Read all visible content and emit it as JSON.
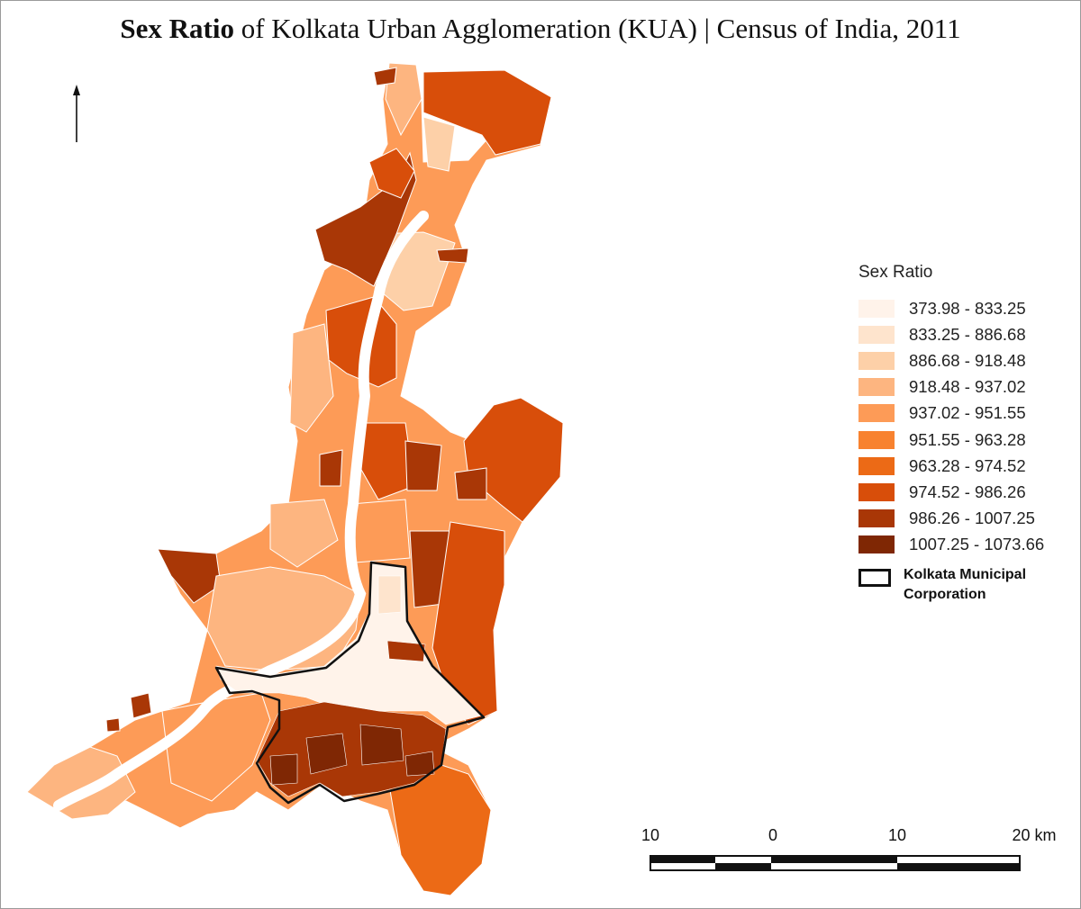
{
  "title": {
    "bold": "Sex Ratio",
    "rest": " of Kolkata Urban Agglomeration (KUA) | Census of India, 2011"
  },
  "legend": {
    "title": "Sex Ratio",
    "classes": [
      {
        "label": "373.98 - 833.25",
        "color": "#fff3ea"
      },
      {
        "label": "833.25 - 886.68",
        "color": "#fee4cd"
      },
      {
        "label": "886.68 - 918.48",
        "color": "#fdd0a8"
      },
      {
        "label": "918.48 - 937.02",
        "color": "#fdb580"
      },
      {
        "label": "937.02 - 951.55",
        "color": "#fd9b57"
      },
      {
        "label": "951.55 - 963.28",
        "color": "#f8822f"
      },
      {
        "label": "963.28 - 974.52",
        "color": "#ec6a16"
      },
      {
        "label": "974.52 - 986.26",
        "color": "#d84e0a"
      },
      {
        "label": "986.26 - 1007.25",
        "color": "#a93706"
      },
      {
        "label": "1007.25 - 1073.66",
        "color": "#7f2704"
      }
    ],
    "boundary_label": "Kolkata Municipal Corporation"
  },
  "scale_bar": {
    "labels": [
      "10",
      "0",
      "10",
      "20 km"
    ]
  },
  "north_arrow": "arrow-up-icon"
}
